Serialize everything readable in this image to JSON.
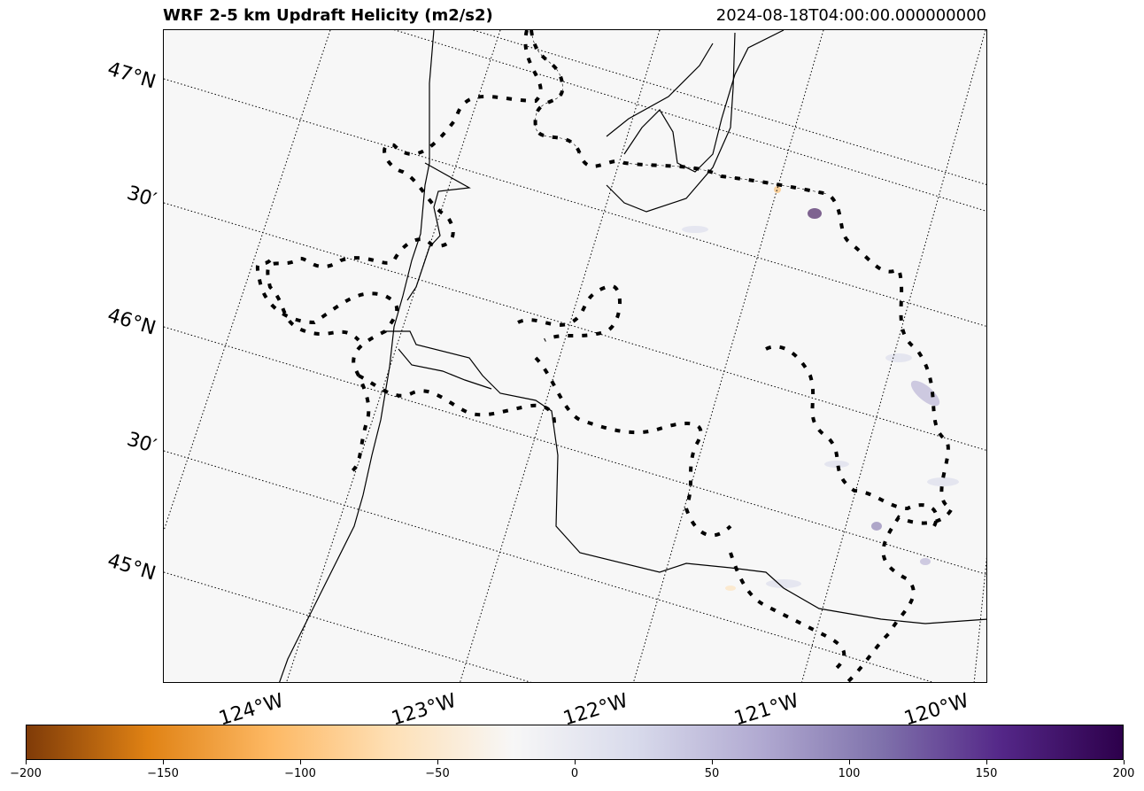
{
  "header": {
    "title": "WRF 2-5 km Updraft Helicity (m2/s2)",
    "timestamp": "2024-08-18T04:00:00.000000000"
  },
  "map": {
    "lat_labels": [
      "47°N",
      "30′",
      "46°N",
      "30′",
      "45°N"
    ],
    "lon_labels": [
      "124°W",
      "123°W",
      "122°W",
      "121°W",
      "120°W"
    ]
  },
  "colorbar": {
    "min": -200,
    "max": 200,
    "tick_labels": [
      "−200",
      "−150",
      "−100",
      "−50",
      "0",
      "50",
      "100",
      "150",
      "200"
    ],
    "colors": [
      "#7f3b08",
      "#e08214",
      "#fdb863",
      "#fee0b6",
      "#f7f7f7",
      "#d8daeb",
      "#b2abd2",
      "#8073ac",
      "#542788",
      "#2d004b"
    ]
  }
}
